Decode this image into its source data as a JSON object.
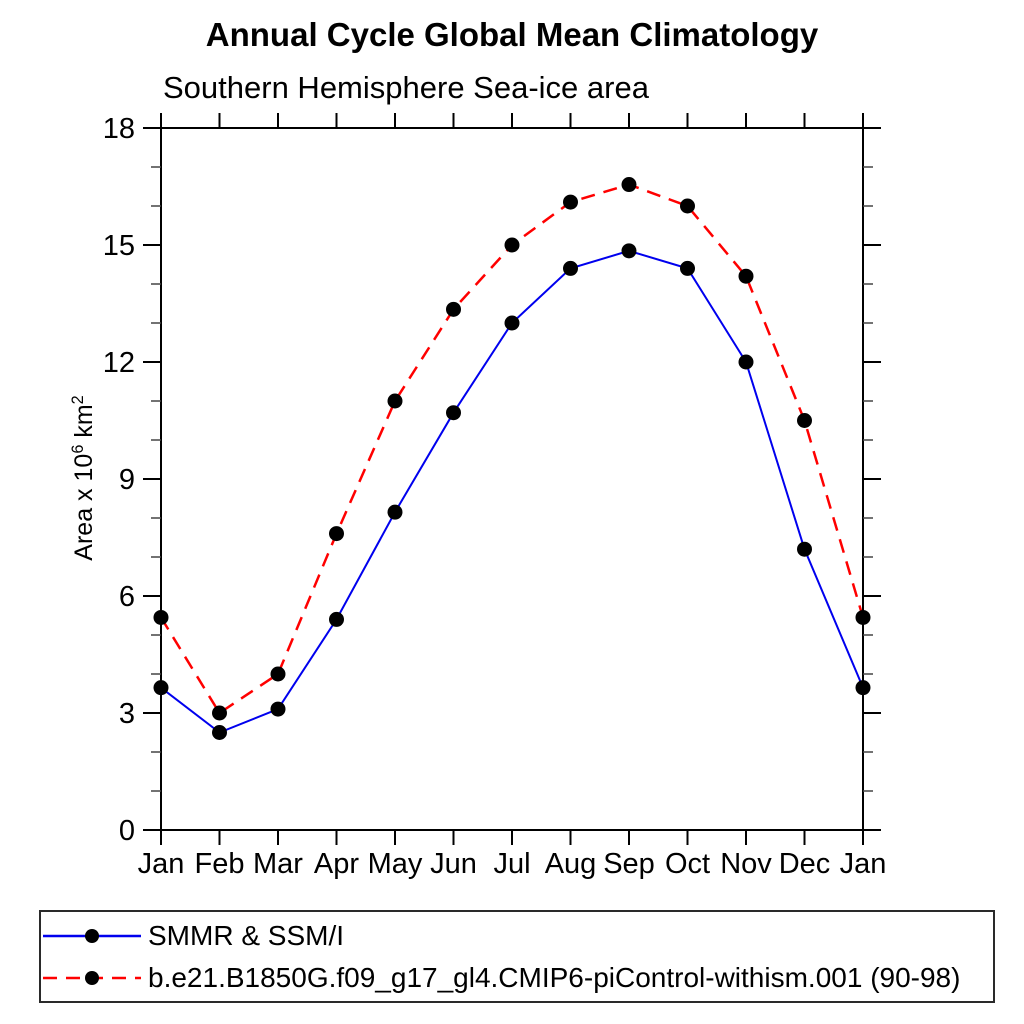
{
  "chart_data": {
    "type": "line",
    "title": "Annual Cycle Global Mean Climatology",
    "subtitle": "Southern Hemisphere Sea-ice area",
    "xlabel": "",
    "ylabel": {
      "text": "Area x 10^6 km^2",
      "parts": {
        "prefix": "Area x 10",
        "sup1": "6",
        "mid": " km",
        "sup2": "2"
      }
    },
    "categories": [
      "Jan",
      "Feb",
      "Mar",
      "Apr",
      "May",
      "Jun",
      "Jul",
      "Aug",
      "Sep",
      "Oct",
      "Nov",
      "Dec",
      "Jan"
    ],
    "ylim": [
      0,
      18
    ],
    "yticks_major": [
      0,
      3,
      6,
      9,
      12,
      15,
      18
    ],
    "ytick_minor_step": 1,
    "grid": false,
    "legend_position": "bottom",
    "axis_color": "#000000",
    "marker_color": "#000000",
    "series": [
      {
        "name": "SMMR & SSM/I",
        "color": "#0000ee",
        "line_style": "solid",
        "marker": "black-dot",
        "values": [
          3.65,
          2.5,
          3.1,
          5.4,
          8.15,
          10.7,
          13.0,
          14.4,
          14.85,
          14.4,
          12.0,
          7.2,
          3.65
        ]
      },
      {
        "name": "b.e21.B1850G.f09_g17_gl4.CMIP6-piControl-withism.001 (90-98)",
        "color": "#ff0000",
        "line_style": "dashed",
        "marker": "black-dot",
        "values": [
          5.45,
          3.0,
          4.0,
          7.6,
          11.0,
          13.35,
          15.0,
          16.1,
          16.55,
          16.0,
          14.2,
          10.5,
          5.45
        ]
      }
    ]
  }
}
